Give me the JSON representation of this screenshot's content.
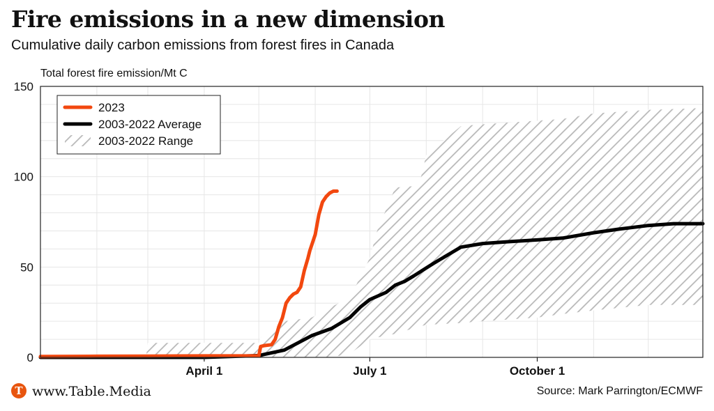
{
  "header": {
    "title": "Fire emissions in a new dimension",
    "subtitle": "Cumulative daily carbon emissions from forest fires in Canada"
  },
  "footer": {
    "logo_letter": "T",
    "site": "www.Table.Media",
    "source": "Source: Mark Parrington/ECMWF"
  },
  "colors": {
    "series_2023": "#f2480f",
    "average": "#000000",
    "range_hatch": "#b8b8b8",
    "grid": "#e6e6e6",
    "logo": "#e8550f"
  },
  "chart_data": {
    "type": "line",
    "title": "Fire emissions in a new dimension",
    "subtitle": "Cumulative daily carbon emissions from forest fires in Canada",
    "ylabel": "Total forest fire emission/Mt C",
    "xlabel": "",
    "ylim": [
      0,
      150
    ],
    "yticks": [
      0,
      50,
      100,
      150
    ],
    "xlim": [
      "2023-01-01",
      "2023-12-31"
    ],
    "xticks": [
      {
        "date": "2023-04-01",
        "label": "April 1"
      },
      {
        "date": "2023-07-01",
        "label": "July 1"
      },
      {
        "date": "2023-10-01",
        "label": "October 1"
      }
    ],
    "grid": true,
    "legend": {
      "placement": "top-left",
      "entries": [
        "2023",
        "2003-2022 Average",
        "2003-2022 Range"
      ]
    },
    "series": [
      {
        "name": "2023",
        "x": [
          "2023-01-01",
          "2023-02-01",
          "2023-03-01",
          "2023-04-01",
          "2023-05-01",
          "2023-05-02",
          "2023-05-04",
          "2023-05-08",
          "2023-05-10",
          "2023-05-12",
          "2023-05-14",
          "2023-05-16",
          "2023-05-18",
          "2023-05-20",
          "2023-05-22",
          "2023-05-24",
          "2023-05-26",
          "2023-05-28",
          "2023-05-29",
          "2023-06-01",
          "2023-06-03",
          "2023-06-05",
          "2023-06-07",
          "2023-06-09",
          "2023-06-11",
          "2023-06-13"
        ],
        "values": [
          0.5,
          0.6,
          0.7,
          0.8,
          0.8,
          6,
          6.5,
          7,
          10,
          17,
          22,
          30,
          33,
          35,
          36,
          39,
          48,
          55,
          59,
          68,
          79,
          86,
          89,
          91,
          92,
          92
        ]
      },
      {
        "name": "2003-2022 Average",
        "x": [
          "2023-01-01",
          "2023-04-01",
          "2023-05-01",
          "2023-05-15",
          "2023-05-30",
          "2023-06-10",
          "2023-06-20",
          "2023-06-26",
          "2023-07-01",
          "2023-07-10",
          "2023-07-15",
          "2023-07-20",
          "2023-07-25",
          "2023-08-05",
          "2023-08-15",
          "2023-08-20",
          "2023-09-01",
          "2023-09-15",
          "2023-10-01",
          "2023-10-15",
          "2023-11-01",
          "2023-11-15",
          "2023-12-01",
          "2023-12-15",
          "2023-12-31"
        ],
        "values": [
          0,
          0,
          1,
          4,
          12,
          16,
          22,
          28,
          32,
          36,
          40,
          42,
          45,
          52,
          58,
          61,
          63,
          64,
          65,
          66,
          69,
          71,
          73,
          74,
          74
        ]
      }
    ],
    "range": {
      "name": "2003-2022 Range",
      "x": [
        "2023-01-01",
        "2023-02-28",
        "2023-03-01",
        "2023-04-01",
        "2023-05-01",
        "2023-05-02",
        "2023-05-15",
        "2023-05-30",
        "2023-06-10",
        "2023-06-20",
        "2023-07-01",
        "2023-07-05",
        "2023-07-15",
        "2023-07-28",
        "2023-08-01",
        "2023-08-20",
        "2023-08-31",
        "2023-09-01",
        "2023-10-01",
        "2023-10-15",
        "2023-11-01",
        "2023-12-01",
        "2023-12-31"
      ],
      "low": [
        0,
        0,
        0,
        0,
        0,
        0,
        0,
        0,
        0,
        2,
        10,
        11,
        13,
        17,
        18,
        19,
        20,
        20,
        22,
        24,
        26,
        29,
        29
      ],
      "high": [
        0,
        0,
        8,
        8,
        8,
        11,
        20,
        22,
        28,
        33,
        55,
        70,
        94,
        95,
        112,
        128,
        129,
        129,
        131,
        132,
        135,
        137,
        138
      ]
    }
  }
}
